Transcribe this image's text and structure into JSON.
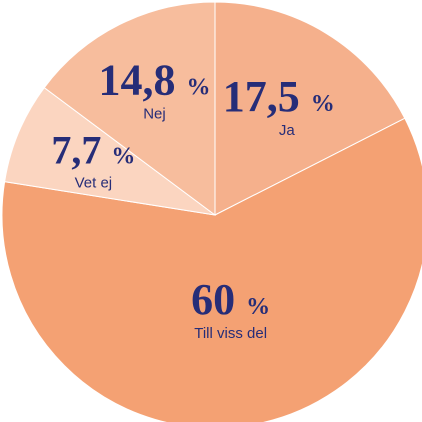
{
  "chart_data": {
    "type": "pie",
    "categories": [
      "Ja",
      "Till viss del",
      "Vet ej",
      "Nej"
    ],
    "values": [
      17.5,
      60,
      7.7,
      14.8
    ],
    "value_labels": [
      "17,5 %",
      "60 %",
      "7,7 %",
      "14,8 %"
    ],
    "colors": [
      "#f5b08c",
      "#f4a173",
      "#fbd5c0",
      "#f7bd9d"
    ]
  }
}
